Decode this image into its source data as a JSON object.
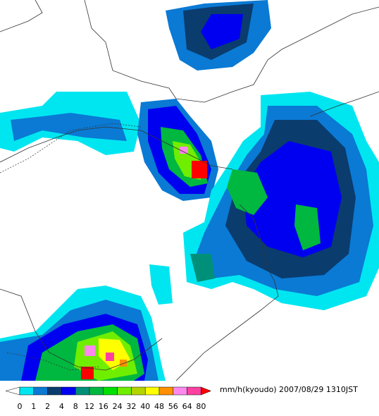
{
  "legend": {
    "unit": "mm/h(kyoudo)",
    "timestamp": "2007/08/29 1310JST",
    "levels": [
      "0",
      "1",
      "2",
      "4",
      "8",
      "12",
      "16",
      "24",
      "32",
      "40",
      "48",
      "56",
      "64",
      "80"
    ],
    "colors": [
      "#ffffff",
      "#00e6f0",
      "#0a7ad4",
      "#0a3c6e",
      "#0000f0",
      "#00907a",
      "#00b840",
      "#00e000",
      "#70ee00",
      "#b4d400",
      "#ffff00",
      "#ff9000",
      "#ff88ee",
      "#ff40a0",
      "#ff0000"
    ]
  }
}
